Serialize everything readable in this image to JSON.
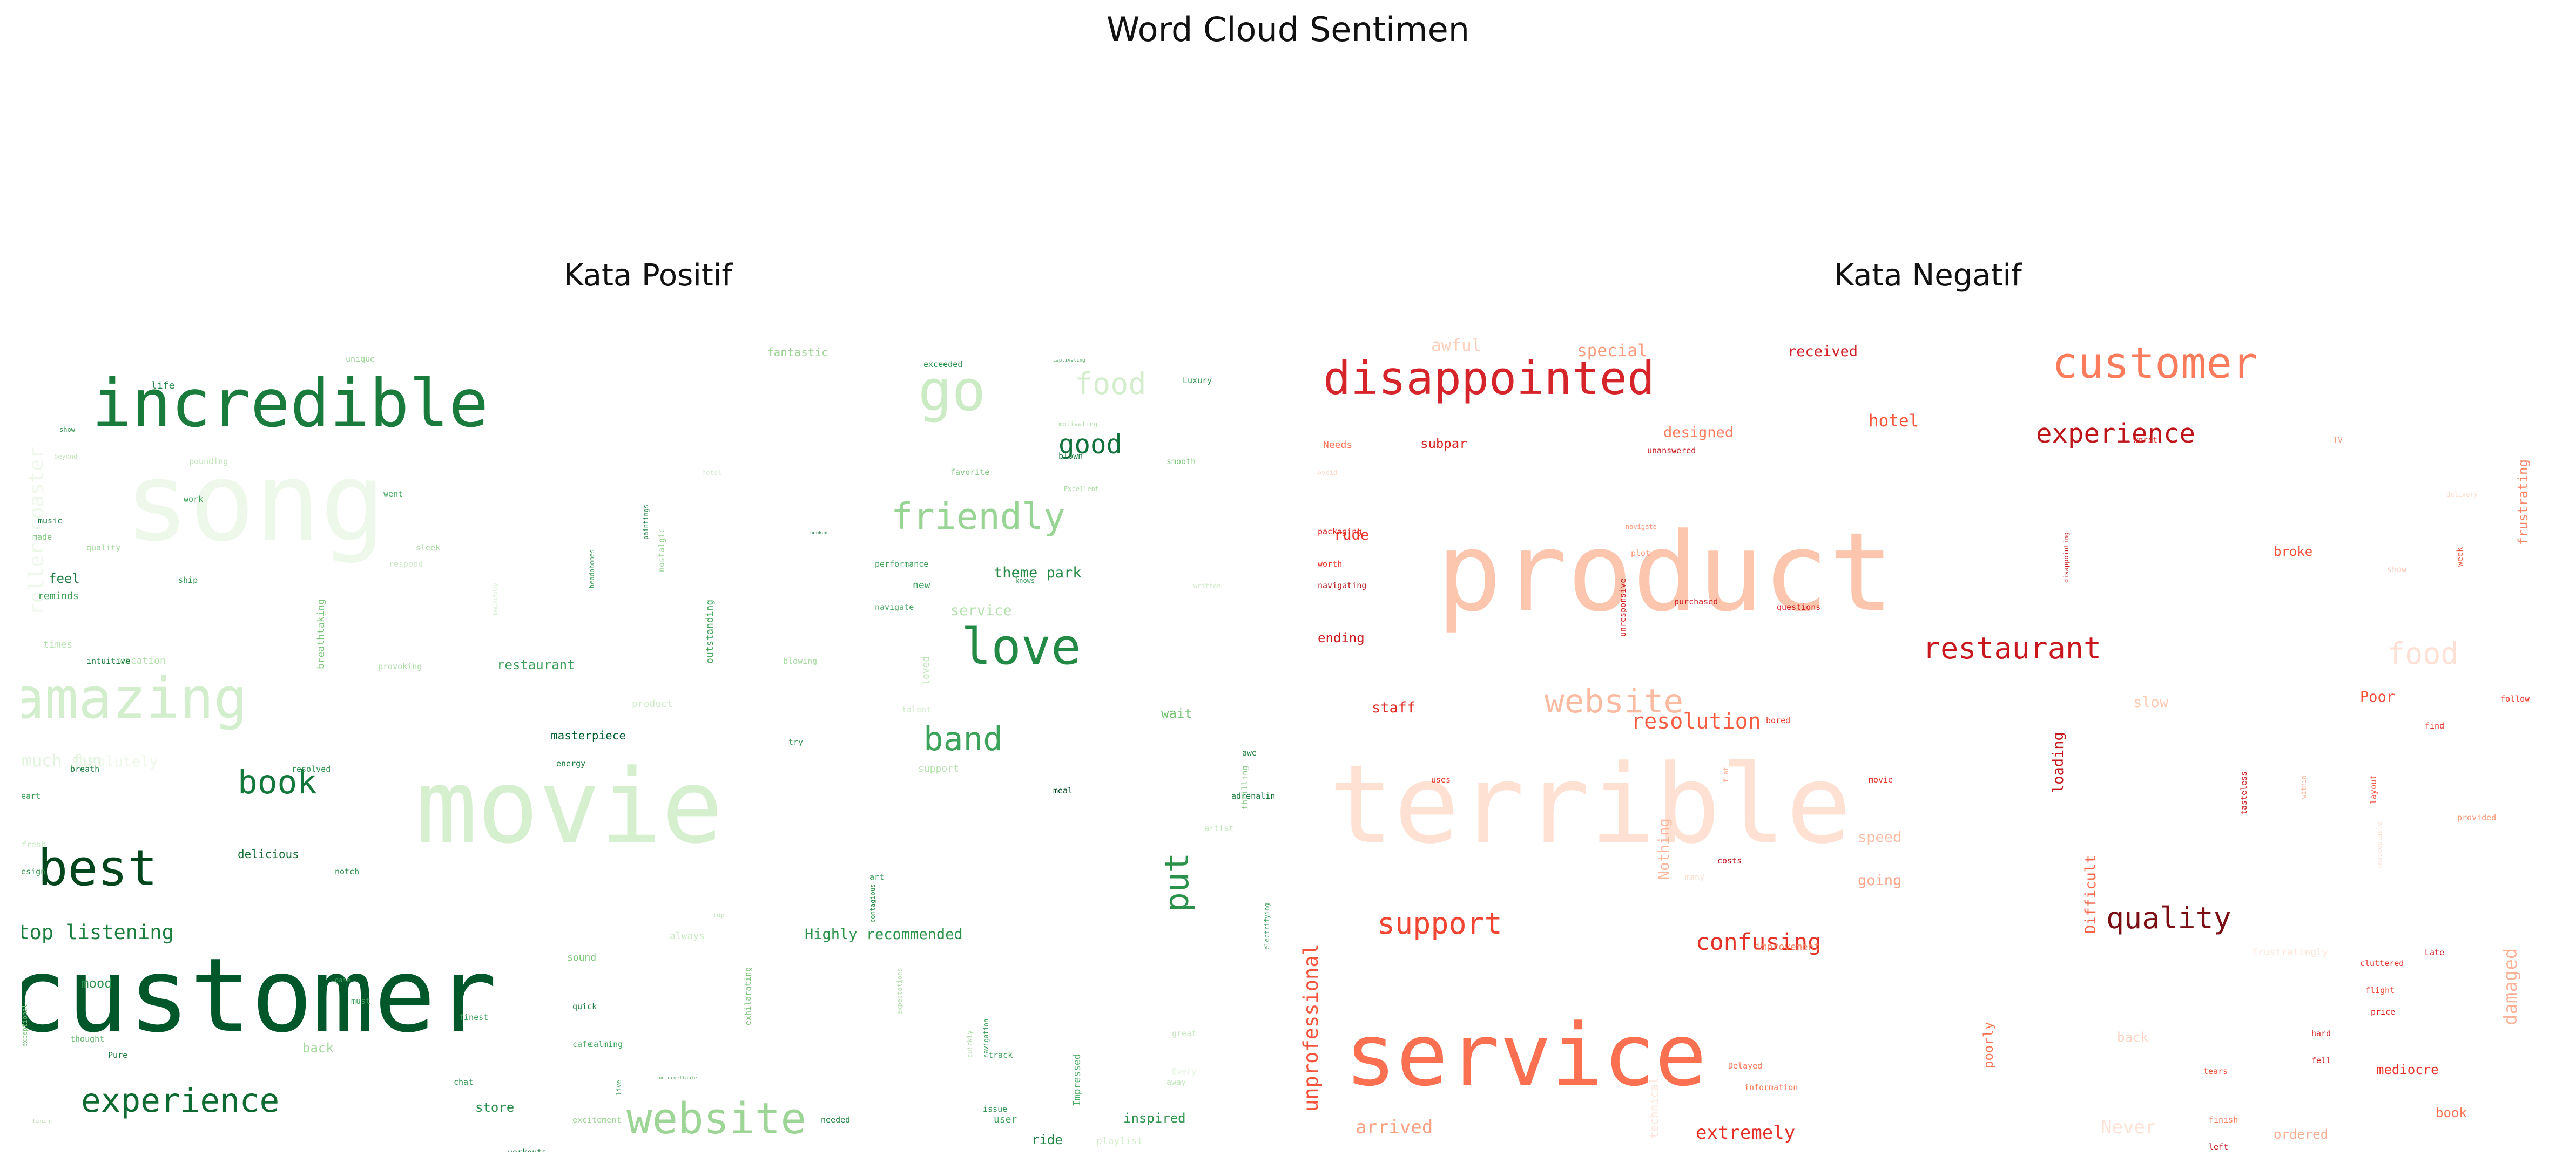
{
  "figure": {
    "suptitle": "Word Cloud Sentimen"
  },
  "chart_data": [
    {
      "type": "wordcloud",
      "title": "Kata Positif",
      "colormap": "Greens",
      "words": [
        {
          "t": "song",
          "s": 66,
          "c": "#eef8ea"
        },
        {
          "t": "movie",
          "s": 62,
          "c": "#d5efcf"
        },
        {
          "t": "customer",
          "s": 62,
          "c": "#00582a"
        },
        {
          "t": "incredible",
          "s": 40,
          "c": "#197c3d"
        },
        {
          "t": "amazing",
          "s": 34,
          "c": "#d3eecd"
        },
        {
          "t": "go",
          "s": 34,
          "c": "#cbebc5"
        },
        {
          "t": "best",
          "s": 30,
          "c": "#00461c"
        },
        {
          "t": "love",
          "s": 30,
          "c": "#228a44"
        },
        {
          "t": "website",
          "s": 26,
          "c": "#9dd597"
        },
        {
          "t": "friendly",
          "s": 22,
          "c": "#98d493"
        },
        {
          "t": "experience",
          "s": 20,
          "c": "#0d6b31"
        },
        {
          "t": "book",
          "s": 20,
          "c": "#12773a"
        },
        {
          "t": "band",
          "s": 20,
          "c": "#3da25a"
        },
        {
          "t": "put",
          "s": 20,
          "c": "#2a914a"
        },
        {
          "t": "food",
          "s": 18,
          "c": "#d4eecd"
        },
        {
          "t": "good",
          "s": 16,
          "c": "#10713a"
        },
        {
          "t": "roller coaster",
          "s": 12,
          "c": "#eef8ea"
        },
        {
          "t": "stop listening",
          "s": 12,
          "c": "#1b7f3e"
        },
        {
          "t": "much fun",
          "s": 10,
          "c": "#e2f4dd"
        },
        {
          "t": "Highly recommended",
          "s": 9,
          "c": "#2d934b"
        },
        {
          "t": "absolutely",
          "s": 9,
          "c": "#edf8e9"
        },
        {
          "t": "theme park",
          "s": 9,
          "c": "#248c46"
        },
        {
          "t": "service",
          "s": 9,
          "c": "#b6e2ae"
        },
        {
          "t": "restaurant",
          "s": 8,
          "c": "#3b9f58"
        },
        {
          "t": "feel",
          "s": 8,
          "c": "#1a7c3e"
        },
        {
          "t": "mood",
          "s": 8,
          "c": "#2c944b"
        },
        {
          "t": "back",
          "s": 8,
          "c": "#a4d99d"
        },
        {
          "t": "wait",
          "s": 8,
          "c": "#73c172"
        },
        {
          "t": "inspired",
          "s": 8,
          "c": "#2d934b"
        },
        {
          "t": "store",
          "s": 8,
          "c": "#258c47"
        },
        {
          "t": "ride",
          "s": 8,
          "c": "#1e8442"
        },
        {
          "t": "fantastic",
          "s": 7,
          "c": "#9dd595"
        },
        {
          "t": "delicious",
          "s": 7,
          "c": "#166f36"
        },
        {
          "t": "masterpiece",
          "s": 7,
          "c": "#00622f"
        },
        {
          "t": "outstanding",
          "s": 6,
          "c": "#45a75d"
        },
        {
          "t": "breathtaking",
          "s": 6,
          "c": "#7cc57b"
        },
        {
          "t": "new",
          "s": 6,
          "c": "#3a9f57"
        },
        {
          "t": "loved",
          "s": 6,
          "c": "#bee5b8"
        },
        {
          "t": "times",
          "s": 6,
          "c": "#b7e2b1"
        },
        {
          "t": "vacation",
          "s": 6,
          "c": "#b4e1ad"
        },
        {
          "t": "reminds",
          "s": 6,
          "c": "#3d9f58"
        },
        {
          "t": "made",
          "s": 5,
          "c": "#7bc47a"
        },
        {
          "t": "product",
          "s": 6,
          "c": "#cfecc9"
        },
        {
          "t": "support",
          "s": 6,
          "c": "#b9e3b2"
        },
        {
          "t": "Impressed",
          "s": 6,
          "c": "#49aa61"
        },
        {
          "t": "user",
          "s": 6,
          "c": "#45a75e"
        },
        {
          "t": "playlist",
          "s": 6,
          "c": "#d4eecd"
        },
        {
          "t": "always",
          "s": 6,
          "c": "#c8eac2"
        },
        {
          "t": "sound",
          "s": 6,
          "c": "#7fc67c"
        },
        {
          "t": "life",
          "s": 6,
          "c": "#26894a"
        },
        {
          "t": "exceeded",
          "s": 5,
          "c": "#2a8f4a"
        },
        {
          "t": "thrilling",
          "s": 5,
          "c": "#7dc57b"
        },
        {
          "t": "meal",
          "s": 5,
          "c": "#00441b"
        },
        {
          "t": "energy",
          "s": 5,
          "c": "#137534"
        },
        {
          "t": "breath",
          "s": 5,
          "c": "#1a7c3e"
        },
        {
          "t": "resolved",
          "s": 5,
          "c": "#2e924c"
        },
        {
          "t": "workouts",
          "s": 5,
          "c": "#1a7b3e"
        },
        {
          "t": "relaxation",
          "s": 5,
          "c": "#85ca80"
        },
        {
          "t": "recommend",
          "s": 5,
          "c": "#3a9e57"
        },
        {
          "t": "addicted",
          "s": 5,
          "c": "#4aab63"
        },
        {
          "t": "finest",
          "s": 5,
          "c": "#3c9f58"
        },
        {
          "t": "thought",
          "s": 5,
          "c": "#5cb366"
        },
        {
          "t": "Pure",
          "s": 5,
          "c": "#1a7c3e"
        },
        {
          "t": "chat",
          "s": 5,
          "c": "#2c924b"
        },
        {
          "t": "quick",
          "s": 5,
          "c": "#1a7c3e"
        },
        {
          "t": "cafe",
          "s": 5,
          "c": "#52ad67"
        },
        {
          "t": "calming",
          "s": 5,
          "c": "#3aa156"
        },
        {
          "t": "track",
          "s": 5,
          "c": "#3ea259"
        },
        {
          "t": "great",
          "s": 5,
          "c": "#c1e6ba"
        },
        {
          "t": "away",
          "s": 5,
          "c": "#c1e6ba"
        },
        {
          "t": "Every",
          "s": 5,
          "c": "#e5f5e0"
        },
        {
          "t": "issue",
          "s": 5,
          "c": "#31974f"
        },
        {
          "t": "needed",
          "s": 5,
          "c": "#1e8342"
        },
        {
          "t": "must",
          "s": 5,
          "c": "#3ca059"
        },
        {
          "t": "game",
          "s": 4,
          "c": "#3d9f58"
        },
        {
          "t": "cruise",
          "s": 5,
          "c": "#7fc67c"
        },
        {
          "t": "art",
          "s": 5,
          "c": "#32984f"
        },
        {
          "t": "top",
          "s": 4,
          "c": "#b6e2ae"
        },
        {
          "t": "notch",
          "s": 5,
          "c": "#2a8f4a"
        },
        {
          "t": "design",
          "s": 5,
          "c": "#2c924b"
        },
        {
          "t": "Heart",
          "s": 5,
          "c": "#3d9f58"
        },
        {
          "t": "fresh",
          "s": 5,
          "c": "#c9ebc3"
        },
        {
          "t": "try",
          "s": 5,
          "c": "#2a8f49"
        },
        {
          "t": "awe",
          "s": 5,
          "c": "#1e8342"
        },
        {
          "t": "adrenaline",
          "s": 5,
          "c": "#137534"
        },
        {
          "t": "artist",
          "s": 5,
          "c": "#b6e2ae"
        },
        {
          "t": "favorite",
          "s": 5,
          "c": "#7dc67b"
        },
        {
          "t": "blown",
          "s": 5,
          "c": "#1b7c3f"
        },
        {
          "t": "smooth",
          "s": 5,
          "c": "#7cc47a"
        },
        {
          "t": "performance",
          "s": 5,
          "c": "#3c9f58"
        },
        {
          "t": "navigate",
          "s": 5,
          "c": "#4aa962"
        },
        {
          "t": "knows",
          "s": 4,
          "c": "#3a9e57"
        },
        {
          "t": "blowing",
          "s": 5,
          "c": "#a3d99c"
        },
        {
          "t": "sleek",
          "s": 5,
          "c": "#a7da9f"
        },
        {
          "t": "respond",
          "s": 5,
          "c": "#d0edca"
        },
        {
          "t": "went",
          "s": 5,
          "c": "#48a962"
        },
        {
          "t": "work",
          "s": 5,
          "c": "#3d9f58"
        },
        {
          "t": "pounding",
          "s": 5,
          "c": "#b9e3b2"
        },
        {
          "t": "quality",
          "s": 5,
          "c": "#a0d799"
        },
        {
          "t": "music",
          "s": 5,
          "c": "#1a7c3e"
        },
        {
          "t": "beyond",
          "s": 4,
          "c": "#c1e6ba"
        },
        {
          "t": "show",
          "s": 4,
          "c": "#2c924b"
        },
        {
          "t": "ship",
          "s": 5,
          "c": "#2d934b"
        },
        {
          "t": "intuitive",
          "s": 5,
          "c": "#1b7d3e"
        },
        {
          "t": "provoking",
          "s": 5,
          "c": "#aadca3"
        },
        {
          "t": "hotel",
          "s": 4,
          "c": "#d7efd1"
        },
        {
          "t": "Luxury",
          "s": 5,
          "c": "#2a8f49"
        },
        {
          "t": "unique",
          "s": 5,
          "c": "#98d493"
        },
        {
          "t": "captivating",
          "s": 3,
          "c": "#4aa962"
        },
        {
          "t": "motivating",
          "s": 4,
          "c": "#b6e2ae"
        },
        {
          "t": "Excellent",
          "s": 4,
          "c": "#a7da9f"
        },
        {
          "t": "hooked",
          "s": 3,
          "c": "#1a7c3e"
        },
        {
          "t": "written",
          "s": 4,
          "c": "#cbebc5"
        },
        {
          "t": "talent",
          "s": 5,
          "c": "#d1edcb"
        },
        {
          "t": "contagious",
          "s": 4,
          "c": "#2c924b"
        },
        {
          "t": "exhilarating",
          "s": 5,
          "c": "#7cc47a"
        },
        {
          "t": "navigation",
          "s": 4,
          "c": "#3d9f58"
        },
        {
          "t": "expectations",
          "s": 4,
          "c": "#b6e2ae"
        },
        {
          "t": "electrifying",
          "s": 4,
          "c": "#3a9e57"
        },
        {
          "t": "exceptional",
          "s": 4,
          "c": "#7bc47a"
        },
        {
          "t": "unforgettable",
          "s": 3,
          "c": "#5cb366"
        },
        {
          "t": "excitement",
          "s": 5,
          "c": "#9dd595"
        },
        {
          "t": "live",
          "s": 4,
          "c": "#46a760"
        },
        {
          "t": "headphones",
          "s": 4,
          "c": "#3ca059"
        },
        {
          "t": "nostalgic",
          "s": 5,
          "c": "#8fd08a"
        },
        {
          "t": "paintings",
          "s": 4,
          "c": "#1a7c3e"
        },
        {
          "t": "beautifully",
          "s": 3,
          "c": "#d4eecd"
        },
        {
          "t": "quickly",
          "s": 4,
          "c": "#a4d99d"
        },
        {
          "t": "finish",
          "s": 3,
          "c": "#a3d89c"
        }
      ]
    },
    {
      "type": "wordcloud",
      "title": "Kata Negatif",
      "colormap": "Reds",
      "words": [
        {
          "t": "product",
          "s": 66,
          "c": "#fcc5ad"
        },
        {
          "t": "terrible",
          "s": 66,
          "c": "#fee1d3"
        },
        {
          "t": "service",
          "s": 52,
          "c": "#fb7050"
        },
        {
          "t": "disappointed",
          "s": 28,
          "c": "#d5242a"
        },
        {
          "t": "customer",
          "s": 26,
          "c": "#fb7c5c"
        },
        {
          "t": "website",
          "s": 20,
          "c": "#fcbba1"
        },
        {
          "t": "restaurant",
          "s": 18,
          "c": "#c9181d"
        },
        {
          "t": "support",
          "s": 18,
          "c": "#f14431"
        },
        {
          "t": "quality",
          "s": 18,
          "c": "#7b0d15"
        },
        {
          "t": "food",
          "s": 18,
          "c": "#fee1d4"
        },
        {
          "t": "experience",
          "s": 16,
          "c": "#bd151a"
        },
        {
          "t": "confusing",
          "s": 14,
          "c": "#e33228"
        },
        {
          "t": "resolution",
          "s": 13,
          "c": "#f85d42"
        },
        {
          "t": "unprofessional",
          "s": 12,
          "c": "#f5533b"
        },
        {
          "t": "damaged",
          "s": 11,
          "c": "#fcb296"
        },
        {
          "t": "arrived",
          "s": 11,
          "c": "#fca082"
        },
        {
          "t": "extremely",
          "s": 11,
          "c": "#e43027"
        },
        {
          "t": "Never",
          "s": 11,
          "c": "#fee2d5"
        },
        {
          "t": "awful",
          "s": 10,
          "c": "#fdd0bc"
        },
        {
          "t": "special",
          "s": 10,
          "c": "#fc9b7c"
        },
        {
          "t": "hotel",
          "s": 10,
          "c": "#f6583e"
        },
        {
          "t": "designed",
          "s": 9,
          "c": "#fb7d5d"
        },
        {
          "t": "received",
          "s": 9,
          "c": "#d21f25"
        },
        {
          "t": "Difficult",
          "s": 9,
          "c": "#f96346"
        },
        {
          "t": "loading",
          "s": 9,
          "c": "#c5171c"
        },
        {
          "t": "Nothing",
          "s": 9,
          "c": "#fcb79c"
        },
        {
          "t": "slow",
          "s": 9,
          "c": "#fdc9b3"
        },
        {
          "t": "Poor",
          "s": 9,
          "c": "#f4503a"
        },
        {
          "t": "staff",
          "s": 9,
          "c": "#e02c26"
        },
        {
          "t": "rude",
          "s": 9,
          "c": "#ee3a2c"
        },
        {
          "t": "speed",
          "s": 9,
          "c": "#fcbea5"
        },
        {
          "t": "going",
          "s": 9,
          "c": "#fca588"
        },
        {
          "t": "mediocre",
          "s": 8,
          "c": "#e83429"
        },
        {
          "t": "frustrating",
          "s": 8,
          "c": "#fc8767"
        },
        {
          "t": "poorly",
          "s": 8,
          "c": "#fb7656"
        },
        {
          "t": "back",
          "s": 8,
          "c": "#fdd4c2"
        },
        {
          "t": "technical",
          "s": 7,
          "c": "#fee6da"
        },
        {
          "t": "ordered",
          "s": 8,
          "c": "#fcaf93"
        },
        {
          "t": "book",
          "s": 8,
          "c": "#fb7252"
        },
        {
          "t": "broke",
          "s": 8,
          "c": "#f34c37"
        },
        {
          "t": "ending",
          "s": 8,
          "c": "#ce1a1e"
        },
        {
          "t": "subpar",
          "s": 8,
          "c": "#d92523"
        },
        {
          "t": "improvement",
          "s": 6,
          "c": "#fc8a6a"
        },
        {
          "t": "frustratingly",
          "s": 6,
          "c": "#fee5d8"
        },
        {
          "t": "cluttered",
          "s": 5,
          "c": "#e32f27"
        },
        {
          "t": "flight",
          "s": 5,
          "c": "#f0402f"
        },
        {
          "t": "price",
          "s": 5,
          "c": "#d82422"
        },
        {
          "t": "Late",
          "s": 5,
          "c": "#d01d1f"
        },
        {
          "t": "hard",
          "s": 5,
          "c": "#d92523"
        },
        {
          "t": "fell",
          "s": 5,
          "c": "#d42121"
        },
        {
          "t": "tears",
          "s": 5,
          "c": "#f44f39"
        },
        {
          "t": "Delayed",
          "s": 5,
          "c": "#fb7252"
        },
        {
          "t": "information",
          "s": 5,
          "c": "#fb7a5a"
        },
        {
          "t": "finish",
          "s": 5,
          "c": "#fb7d5d"
        },
        {
          "t": "left",
          "s": 5,
          "c": "#c4161c"
        },
        {
          "t": "costs",
          "s": 5,
          "c": "#bc141a"
        },
        {
          "t": "many",
          "s": 5,
          "c": "#fedfd0"
        },
        {
          "t": "uses",
          "s": 5,
          "c": "#e53228"
        },
        {
          "t": "movie",
          "s": 5,
          "c": "#e32f27"
        },
        {
          "t": "bored",
          "s": 5,
          "c": "#ed392b"
        },
        {
          "t": "flat",
          "s": 4,
          "c": "#fcb095"
        },
        {
          "t": "tasteless",
          "s": 5,
          "c": "#c5171c"
        },
        {
          "t": "within",
          "s": 4,
          "c": "#fcb499"
        },
        {
          "t": "layout",
          "s": 5,
          "c": "#f34a36"
        },
        {
          "t": "unacceptable",
          "s": 4,
          "c": "#fedecf"
        },
        {
          "t": "find",
          "s": 5,
          "c": "#e53228"
        },
        {
          "t": "follow",
          "s": 5,
          "c": "#ed392b"
        },
        {
          "t": "provided",
          "s": 5,
          "c": "#fc9777"
        },
        {
          "t": "questions",
          "s": 5,
          "c": "#d42020"
        },
        {
          "t": "purchased",
          "s": 5,
          "c": "#cc191e"
        },
        {
          "t": "plot",
          "s": 5,
          "c": "#fc9474"
        },
        {
          "t": "navigate",
          "s": 4,
          "c": "#fc9a7b"
        },
        {
          "t": "unresponsive",
          "s": 5,
          "c": "#d01d1f"
        },
        {
          "t": "disappointing",
          "s": 4,
          "c": "#c3161b"
        },
        {
          "t": "unanswered",
          "s": 5,
          "c": "#c5171c"
        },
        {
          "t": "worst",
          "s": 5,
          "c": "#de2b25"
        },
        {
          "t": "TV",
          "s": 5,
          "c": "#fc9b7c"
        },
        {
          "t": "delivery",
          "s": 4,
          "c": "#fedbcc"
        },
        {
          "t": "week",
          "s": 5,
          "c": "#f4503a"
        },
        {
          "t": "show",
          "s": 5,
          "c": "#fdcab5"
        },
        {
          "t": "Needs",
          "s": 6,
          "c": "#fb7656"
        },
        {
          "t": "Avoid",
          "s": 4,
          "c": "#fedbcc"
        },
        {
          "t": "packaging",
          "s": 5,
          "c": "#dc2924"
        },
        {
          "t": "worth",
          "s": 5,
          "c": "#ea362a"
        },
        {
          "t": "navigating",
          "s": 5,
          "c": "#b11218"
        }
      ]
    }
  ]
}
